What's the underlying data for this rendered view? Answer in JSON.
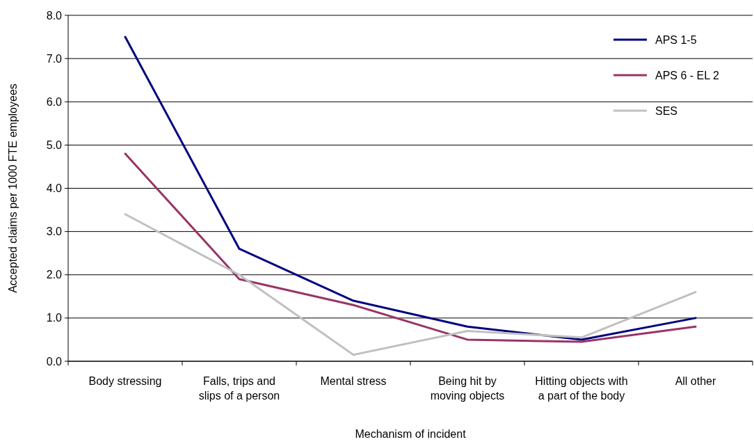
{
  "chart_data": {
    "type": "line",
    "xlabel": "Mechanism of incident",
    "ylabel": "Accepted claims per 1000 FTE employees",
    "categories": [
      "Body stressing",
      "Falls, trips and slips of a person",
      "Mental stress",
      "Being hit by moving objects",
      "Hitting objects with a part of the body",
      "All other"
    ],
    "series": [
      {
        "name": "APS 1-5",
        "color": "#000080",
        "values": [
          7.5,
          2.6,
          1.4,
          0.8,
          0.5,
          1.0
        ]
      },
      {
        "name": "APS 6 - EL 2",
        "color": "#993366",
        "values": [
          4.8,
          1.9,
          1.3,
          0.5,
          0.45,
          0.8
        ]
      },
      {
        "name": "SES",
        "color": "#c0c0c0",
        "values": [
          3.4,
          2.0,
          0.15,
          0.7,
          0.55,
          1.6
        ]
      }
    ],
    "ylim": [
      0,
      8
    ],
    "yticks": [
      {
        "value": 0,
        "label": "0.0"
      },
      {
        "value": 1,
        "label": "1.0"
      },
      {
        "value": 2,
        "label": "2.0"
      },
      {
        "value": 3,
        "label": "3.0"
      },
      {
        "value": 4,
        "label": "4.0"
      },
      {
        "value": 5,
        "label": "5.0"
      },
      {
        "value": 6,
        "label": "6.0"
      },
      {
        "value": 7,
        "label": "7.0"
      },
      {
        "value": 8,
        "label": "8.0"
      }
    ],
    "grid": "y",
    "legend": "top right",
    "marker": "none",
    "line_style": "solid"
  }
}
